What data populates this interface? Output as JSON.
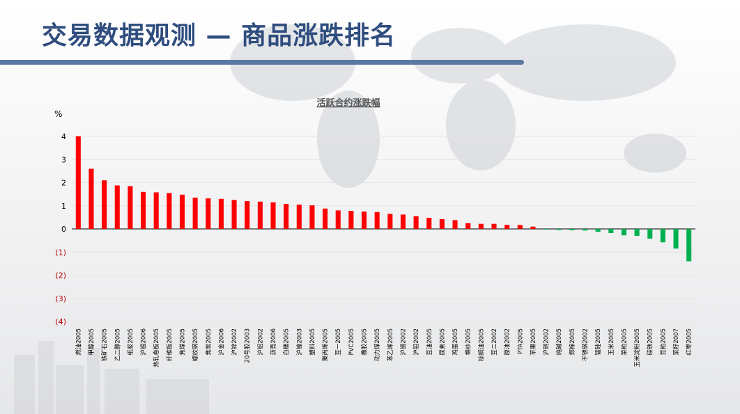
{
  "slide": {
    "title": "交易数据观测 — 商品涨跌排名"
  },
  "colors": {
    "positive": "#ff0000",
    "negative": "#00b050",
    "title": "#2f4d7e",
    "accent_bar": "#5c79a3",
    "negative_tick": "#c00000"
  },
  "chart_data": {
    "type": "bar",
    "title": "活跃合约涨跌幅",
    "ylabel": "%",
    "xlabel": "",
    "ylim": [
      -4,
      4
    ],
    "yticks": [
      4,
      3,
      2,
      1,
      0,
      -1,
      -2,
      -3,
      -4
    ],
    "ytick_labels": [
      "4",
      "3",
      "2",
      "1",
      "0",
      "(1)",
      "(2)",
      "(3)",
      "(4)"
    ],
    "grid": true,
    "categories": [
      "燃油2005",
      "甲醇2005",
      "铁矿石2005",
      "乙二醇2005",
      "纸浆2005",
      "沪银2006",
      "热轧卷板2005",
      "纤维板2005",
      "焦煤2005",
      "螺纹钢2005",
      "焦炭2005",
      "沪金2006",
      "沪锌2002",
      "20号胶2003",
      "沪铝2002",
      "沥青2006",
      "白糖2005",
      "沪镍2003",
      "塑料2005",
      "聚丙烯2005",
      "豆一2005",
      "PVC2005",
      "橡胶2005",
      "动力煤2005",
      "苯乙烯2005",
      "沪锡2002",
      "沪铅2002",
      "豆油2005",
      "尿素2005",
      "鸡蛋2005",
      "棉纱2005",
      "棕榈油2005",
      "豆二2002",
      "原油2002",
      "PTA2005",
      "苹果2005",
      "沪铜2002",
      "纯碱2005",
      "郑棉2005",
      "不锈钢2002",
      "锰硅2005",
      "玉米2005",
      "菜粕2005",
      "玉米淀粉2005",
      "硅铁2005",
      "豆粕2005",
      "菜籽2007",
      "红枣2005"
    ],
    "values": [
      4.0,
      2.6,
      2.1,
      1.88,
      1.85,
      1.6,
      1.58,
      1.55,
      1.48,
      1.35,
      1.32,
      1.3,
      1.25,
      1.2,
      1.18,
      1.15,
      1.08,
      1.05,
      1.02,
      0.88,
      0.8,
      0.78,
      0.75,
      0.73,
      0.65,
      0.62,
      0.55,
      0.48,
      0.42,
      0.38,
      0.25,
      0.22,
      0.22,
      0.18,
      0.17,
      0.1,
      -0.03,
      -0.05,
      -0.06,
      -0.07,
      -0.12,
      -0.18,
      -0.28,
      -0.3,
      -0.42,
      -0.58,
      -0.85,
      -1.4
    ]
  }
}
